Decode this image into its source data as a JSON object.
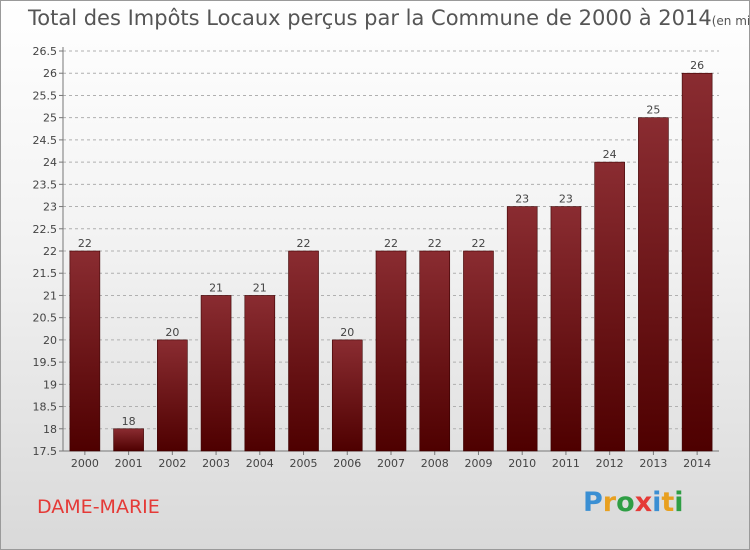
{
  "title": "Total des Impôts Locaux perçus par la Commune de 2000 à 2014",
  "subtitle": "(en milliers d'€)",
  "commune": "DAME-MARIE",
  "logo": {
    "letters": [
      "P",
      "r",
      "o",
      "x",
      "i",
      "t",
      "i"
    ],
    "colors": [
      "#3a8fd3",
      "#e8a020",
      "#2e9e44",
      "#e53a37",
      "#3a8fd3",
      "#e8a020",
      "#2e9e44"
    ]
  },
  "colors": {
    "bar_top": "#8a2c31",
    "bar_bottom": "#4e0000",
    "grid": "#b0b0b0",
    "text": "#444444"
  },
  "chart_data": {
    "type": "bar",
    "categories": [
      "2000",
      "2001",
      "2002",
      "2003",
      "2004",
      "2005",
      "2006",
      "2007",
      "2008",
      "2009",
      "2010",
      "2011",
      "2012",
      "2013",
      "2014"
    ],
    "values": [
      22,
      18,
      20,
      21,
      21,
      22,
      20,
      22,
      22,
      22,
      23,
      23,
      24,
      25,
      26
    ],
    "data_labels": [
      "22",
      "18",
      "20",
      "21",
      "21",
      "22",
      "20",
      "22",
      "22",
      "22",
      "23",
      "23",
      "24",
      "25",
      "26"
    ],
    "yticks": [
      "17.5",
      "18",
      "18.5",
      "19",
      "19.5",
      "20",
      "20.5",
      "21",
      "21.5",
      "22",
      "22.5",
      "23",
      "23.5",
      "24",
      "24.5",
      "25",
      "25.5",
      "26",
      "26.5"
    ],
    "ylim": [
      17.5,
      26.5
    ],
    "grid": true,
    "legend": "none"
  }
}
